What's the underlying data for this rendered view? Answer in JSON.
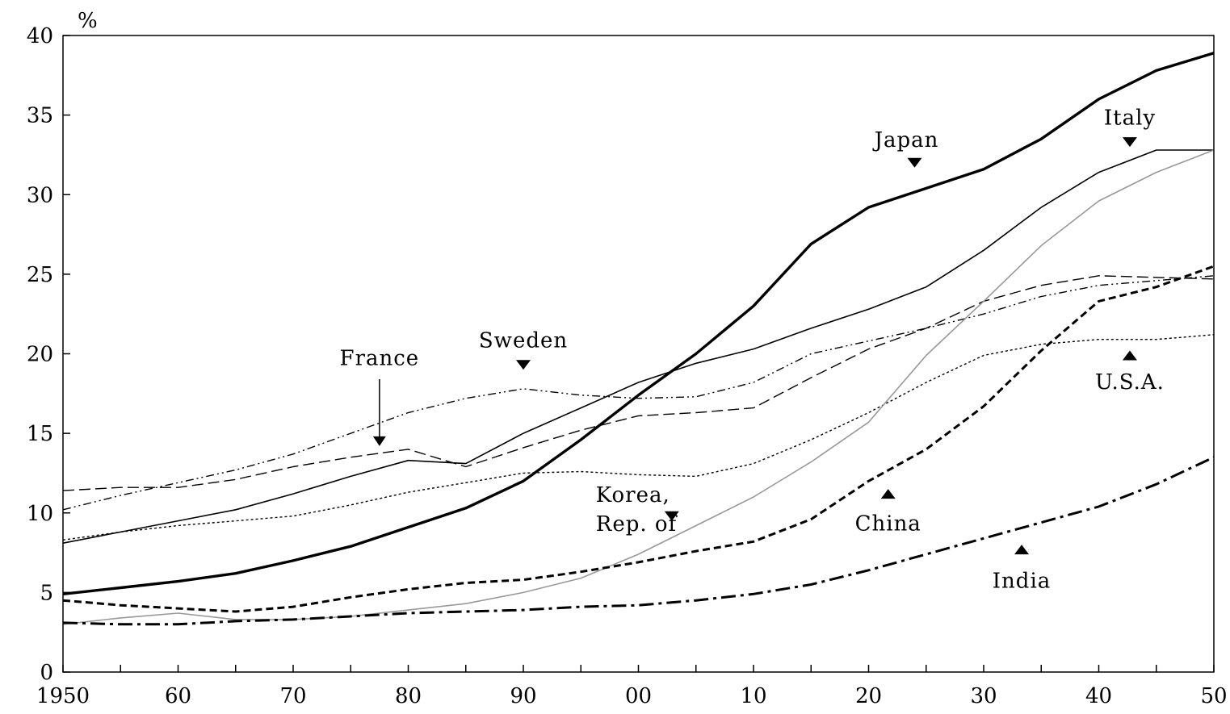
{
  "chart_data": {
    "type": "line",
    "y_unit_label": "%",
    "title": "",
    "xlabel": "",
    "ylabel": "",
    "xlim": [
      1950,
      2050
    ],
    "ylim": [
      0,
      40
    ],
    "grid": false,
    "x_ticks": [
      1950,
      1955,
      1960,
      1965,
      1970,
      1975,
      1980,
      1985,
      1990,
      1995,
      2000,
      2005,
      2010,
      2015,
      2020,
      2025,
      2030,
      2035,
      2040,
      2045,
      2050
    ],
    "x_tick_labels": [
      {
        "x": 1950,
        "label": "1950"
      },
      {
        "x": 1960,
        "label": "60"
      },
      {
        "x": 1970,
        "label": "70"
      },
      {
        "x": 1980,
        "label": "80"
      },
      {
        "x": 1990,
        "label": "90"
      },
      {
        "x": 2000,
        "label": "00"
      },
      {
        "x": 2010,
        "label": "10"
      },
      {
        "x": 2020,
        "label": "20"
      },
      {
        "x": 2030,
        "label": "30"
      },
      {
        "x": 2040,
        "label": "40"
      },
      {
        "x": 2050,
        "label": "50"
      }
    ],
    "y_ticks": [
      0,
      5,
      10,
      15,
      20,
      25,
      30,
      35,
      40
    ],
    "y_tick_labels": [
      "0",
      "5",
      "10",
      "15",
      "20",
      "25",
      "30",
      "35",
      "40"
    ],
    "x": [
      1950,
      1955,
      1960,
      1965,
      1970,
      1975,
      1980,
      1985,
      1990,
      1995,
      2000,
      2005,
      2010,
      2015,
      2020,
      2025,
      2030,
      2035,
      2040,
      2045,
      2050
    ],
    "series": [
      {
        "name": "Japan",
        "stroke": "#000000",
        "width": 3.4,
        "dash": "",
        "values": [
          4.9,
          5.3,
          5.7,
          6.2,
          7.0,
          7.9,
          9.1,
          10.3,
          12.0,
          14.6,
          17.4,
          20.0,
          23.0,
          26.9,
          29.2,
          30.4,
          31.6,
          33.5,
          36.0,
          37.8,
          38.9
        ]
      },
      {
        "name": "Italy",
        "stroke": "#000000",
        "width": 1.6,
        "dash": "",
        "values": [
          8.1,
          8.8,
          9.5,
          10.2,
          11.2,
          12.3,
          13.3,
          13.1,
          15.0,
          16.6,
          18.2,
          19.4,
          20.3,
          21.6,
          22.8,
          24.2,
          26.5,
          29.2,
          31.4,
          32.8,
          32.8
        ]
      },
      {
        "name": "France",
        "stroke": "#000000",
        "width": 1.4,
        "dash": "14 6",
        "values": [
          11.4,
          11.6,
          11.6,
          12.1,
          12.9,
          13.5,
          14.0,
          12.9,
          14.1,
          15.2,
          16.1,
          16.3,
          16.6,
          18.5,
          20.3,
          21.6,
          23.3,
          24.3,
          24.9,
          24.8,
          24.7
        ]
      },
      {
        "name": "Sweden",
        "stroke": "#000000",
        "width": 1.4,
        "dash": "10 4 2 4 2 4",
        "values": [
          10.2,
          11.1,
          11.9,
          12.7,
          13.7,
          15.0,
          16.3,
          17.2,
          17.8,
          17.4,
          17.2,
          17.3,
          18.2,
          20.0,
          20.8,
          21.6,
          22.5,
          23.6,
          24.3,
          24.6,
          24.9
        ]
      },
      {
        "name": "U.S.A.",
        "stroke": "#000000",
        "width": 1.4,
        "dash": "3 3",
        "values": [
          8.3,
          8.8,
          9.2,
          9.5,
          9.8,
          10.5,
          11.3,
          11.9,
          12.5,
          12.6,
          12.4,
          12.3,
          13.1,
          14.6,
          16.3,
          18.2,
          19.9,
          20.6,
          20.9,
          20.9,
          21.2
        ]
      },
      {
        "name": "Korea, Rep. of",
        "stroke": "#999999",
        "width": 1.6,
        "dash": "",
        "values": [
          3.0,
          3.4,
          3.7,
          3.3,
          3.3,
          3.5,
          3.9,
          4.3,
          5.0,
          5.9,
          7.4,
          9.2,
          11.0,
          13.2,
          15.7,
          19.9,
          23.3,
          26.8,
          29.6,
          31.4,
          32.8
        ]
      },
      {
        "name": "China",
        "stroke": "#000000",
        "width": 3.0,
        "dash": "9 5",
        "values": [
          4.5,
          4.2,
          4.0,
          3.8,
          4.1,
          4.7,
          5.2,
          5.6,
          5.8,
          6.3,
          6.9,
          7.6,
          8.2,
          9.6,
          12.0,
          14.0,
          16.7,
          20.2,
          23.3,
          24.2,
          25.5
        ]
      },
      {
        "name": "India",
        "stroke": "#000000",
        "width": 3.0,
        "dash": "18 6 4 6",
        "values": [
          3.1,
          3.0,
          3.0,
          3.2,
          3.3,
          3.5,
          3.7,
          3.8,
          3.9,
          4.1,
          4.2,
          4.5,
          4.9,
          5.5,
          6.4,
          7.4,
          8.4,
          9.4,
          10.4,
          11.8,
          13.5
        ]
      }
    ],
    "annotations": [
      {
        "name": "Japan",
        "lines": [
          "Japan"
        ],
        "marker": "down",
        "tx": 2023.3,
        "ty": 33.0,
        "mx": 2024.0,
        "my": 32.0
      },
      {
        "name": "Italy",
        "lines": [
          "Italy"
        ],
        "marker": "down",
        "tx": 2042.7,
        "ty": 34.4,
        "mx": 2042.7,
        "my": 33.3
      },
      {
        "name": "France",
        "lines": [
          "France"
        ],
        "marker": "arrow",
        "tx": 1977.5,
        "ty": 19.3,
        "ax": 1977.5,
        "ay1": 18.4,
        "ay2": 14.3
      },
      {
        "name": "Sweden",
        "lines": [
          "Sweden"
        ],
        "marker": "down",
        "tx": 1990.0,
        "ty": 20.4,
        "mx": 1990.0,
        "my": 19.3
      },
      {
        "name": "U.S.A.",
        "lines": [
          "U.S.A."
        ],
        "marker": "up",
        "tx": 2042.7,
        "ty": 17.8,
        "mx": 2042.7,
        "my": 19.9
      },
      {
        "name": "Korea, Rep. of",
        "lines": [
          "Korea,",
          "Rep. of"
        ],
        "marker": "down",
        "tx": 1996.3,
        "ty": 10.7,
        "mx": 2002.9,
        "my": 9.8
      },
      {
        "name": "China",
        "lines": [
          "China"
        ],
        "marker": "up",
        "tx": 2021.7,
        "ty": 8.9,
        "mx": 2021.7,
        "my": 11.2
      },
      {
        "name": "India",
        "lines": [
          "India"
        ],
        "marker": "up",
        "tx": 2033.3,
        "ty": 5.3,
        "mx": 2033.3,
        "my": 7.7
      }
    ]
  }
}
